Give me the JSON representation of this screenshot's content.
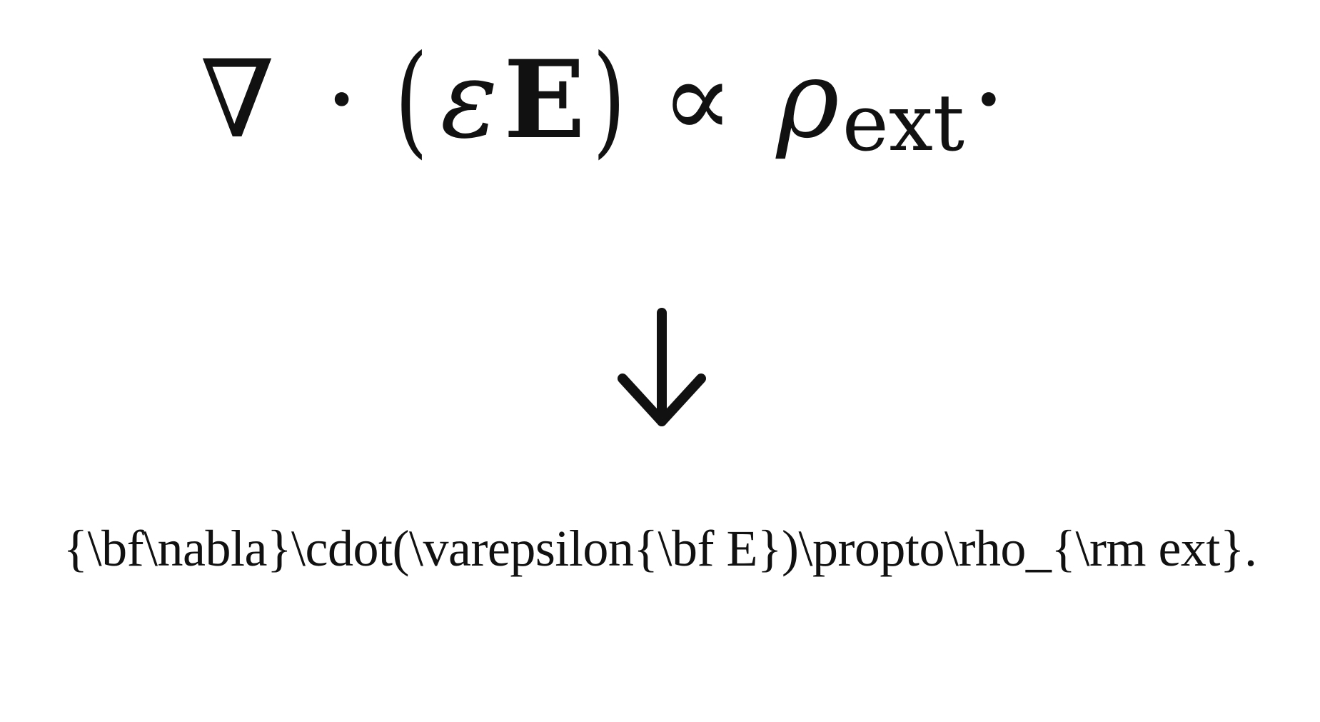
{
  "equation": {
    "nabla": "∇",
    "dot": "·",
    "open_paren": "(",
    "epsilon": "ε",
    "field": "E",
    "close_paren": ")",
    "propto": "∝",
    "rho": "ρ",
    "subscript": "ext",
    "period": "·"
  },
  "arrow_icon": "down-arrow-icon",
  "latex_source": "{\\bf\\nabla}\\cdot(\\varepsilon{\\bf E})\\propto\\rho_{\\rm ext}."
}
